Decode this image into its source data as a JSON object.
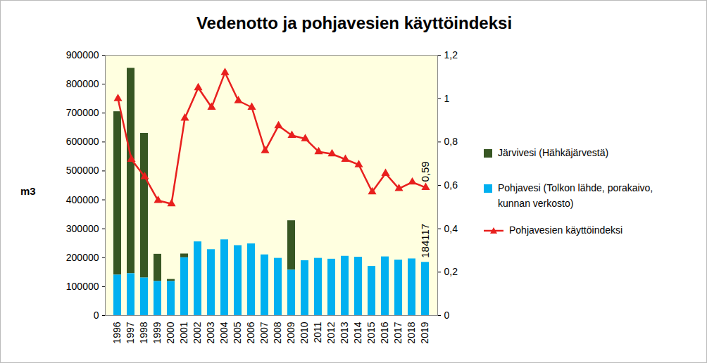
{
  "chart_data": {
    "type": "bar",
    "title": "Vedenotto ja pohjavesien käyttöindeksi",
    "y_label": "m3",
    "categories": [
      "1996",
      "1997",
      "1998",
      "1999",
      "2000",
      "2001",
      "2002",
      "2003",
      "2004",
      "2005",
      "2006",
      "2007",
      "2008",
      "2009",
      "2010",
      "2011",
      "2012",
      "2013",
      "2014",
      "2015",
      "2016",
      "2017",
      "2018",
      "2019"
    ],
    "series": [
      {
        "name": "Järvivesi (Hähkäjärvestä)",
        "type": "bar",
        "color": "#375623",
        "values": [
          565000,
          710000,
          500000,
          94000,
          7000,
          13000,
          0,
          0,
          0,
          0,
          0,
          0,
          0,
          171000,
          0,
          0,
          0,
          0,
          0,
          0,
          0,
          0,
          0,
          0
        ]
      },
      {
        "name": "Pohjavesi (Tolkon lähde, porakaivo, kunnan verkosto)",
        "type": "bar",
        "color": "#00b0f0",
        "values": [
          140000,
          145000,
          130000,
          118000,
          118000,
          200000,
          255000,
          228000,
          262000,
          242000,
          248000,
          210000,
          198000,
          157000,
          190000,
          198000,
          195000,
          205000,
          202000,
          170000,
          203000,
          192000,
          196000,
          184117
        ]
      },
      {
        "name": "Pohjavesien käyttöindeksi",
        "type": "line",
        "axis": "y2",
        "color": "#e8201e",
        "marker": "triangle",
        "values": [
          1.0,
          0.72,
          0.64,
          0.53,
          0.515,
          0.91,
          1.05,
          0.96,
          1.12,
          0.99,
          0.96,
          0.76,
          0.875,
          0.83,
          0.815,
          0.755,
          0.745,
          0.72,
          0.695,
          0.57,
          0.655,
          0.585,
          0.615,
          0.59
        ]
      }
    ],
    "stacked": true,
    "ylim": [
      0,
      900000
    ],
    "yticks": [
      0,
      100000,
      200000,
      300000,
      400000,
      500000,
      600000,
      700000,
      800000,
      900000
    ],
    "y2lim": [
      0,
      1.2
    ],
    "y2ticks": [
      0,
      {
        "value": 0.2,
        "label": "0,2"
      },
      {
        "value": 0.4,
        "label": "0,4"
      },
      {
        "value": 0.6,
        "label": "0,6"
      },
      {
        "value": 0.8,
        "label": "0,8"
      },
      1,
      {
        "value": 1.2,
        "label": "1,2"
      }
    ],
    "grid": false,
    "legend": "right",
    "annotations": [
      {
        "category": "2019",
        "value": 0.59,
        "label": "0,59",
        "axis": "y2"
      },
      {
        "category": "2019",
        "value": 184117,
        "label": "184117"
      }
    ]
  }
}
